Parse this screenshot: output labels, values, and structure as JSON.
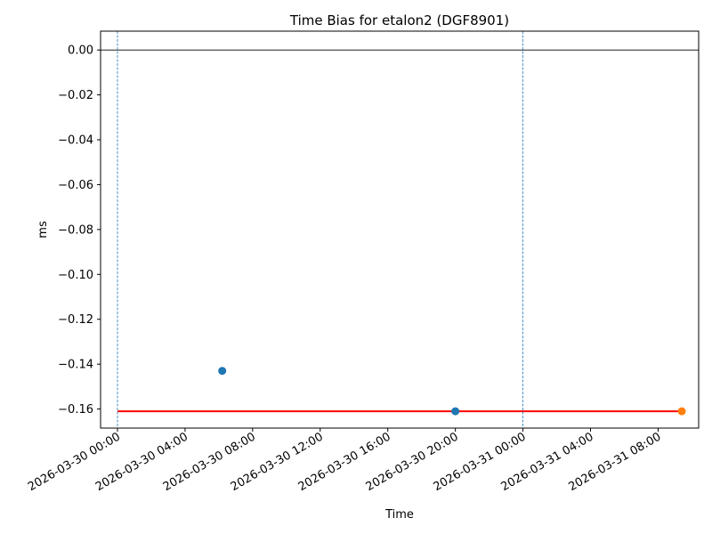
{
  "chart_data": {
    "type": "scatter",
    "title": "Time Bias for etalon2 (DGF8901)",
    "xlabel": "Time",
    "ylabel": "ms",
    "xlim": [
      "2026-03-29 23:00",
      "2026-03-31 10:24"
    ],
    "ylim": [
      -0.1685,
      0.0084
    ],
    "yticks": [
      0.0,
      -0.02,
      -0.04,
      -0.06,
      -0.08,
      -0.1,
      -0.12,
      -0.14,
      -0.16
    ],
    "ytick_labels": [
      "0.00",
      "−0.02",
      "−0.04",
      "−0.06",
      "−0.08",
      "−0.10",
      "−0.12",
      "−0.14",
      "−0.16"
    ],
    "xticks": [
      "2026-03-30 00:00",
      "2026-03-30 04:00",
      "2026-03-30 08:00",
      "2026-03-30 12:00",
      "2026-03-30 16:00",
      "2026-03-30 20:00",
      "2026-03-31 00:00",
      "2026-03-31 04:00",
      "2026-03-31 08:00"
    ],
    "grid": false,
    "series": [
      {
        "color": "#1f77b4",
        "points": [
          {
            "x": "2026-03-30 06:12",
            "y": -0.143
          },
          {
            "x": "2026-03-30 20:00",
            "y": -0.161
          }
        ]
      },
      {
        "color": "#ff7f0e",
        "points": [
          {
            "x": "2026-03-31 09:24",
            "y": -0.161
          }
        ]
      }
    ],
    "reference_lines": [
      {
        "orientation": "horizontal",
        "y": 0.0,
        "color": "#000000",
        "style": "solid"
      },
      {
        "orientation": "horizontal",
        "y": -0.161,
        "x_from": "2026-03-30 00:00",
        "x_to": "2026-03-31 09:24",
        "color": "#ff0000",
        "style": "solid"
      },
      {
        "orientation": "vertical",
        "x": "2026-03-30 00:00",
        "color": "#1f77b4",
        "style": "dashed"
      },
      {
        "orientation": "vertical",
        "x": "2026-03-31 00:00",
        "color": "#1f77b4",
        "style": "dashed"
      }
    ]
  }
}
